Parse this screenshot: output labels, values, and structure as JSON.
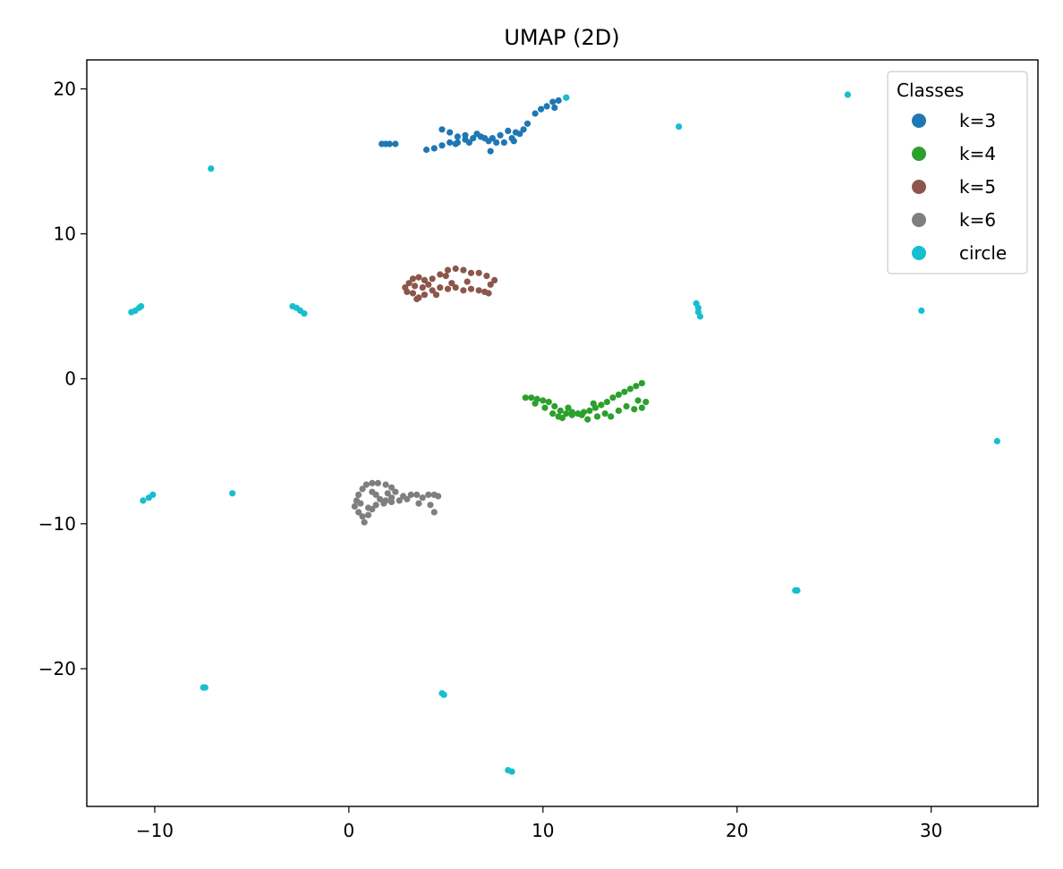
{
  "chart_data": {
    "type": "scatter",
    "title": "UMAP (2D)",
    "xlabel": "",
    "ylabel": "",
    "xlim": [
      -13.5,
      35.5
    ],
    "ylim": [
      -29.5,
      22
    ],
    "xticks": [
      -10,
      0,
      10,
      20,
      30
    ],
    "xtick_labels": [
      "−10",
      "0",
      "10",
      "20",
      "30"
    ],
    "yticks": [
      -20,
      -10,
      0,
      10,
      20
    ],
    "ytick_labels": [
      "−20",
      "−10",
      "0",
      "10",
      "20"
    ],
    "grid": false,
    "legend": {
      "title": "Classes",
      "placement": "top-right"
    },
    "series": [
      {
        "name": "k=3",
        "color": "#1f77b4",
        "points": [
          [
            1.7,
            16.2
          ],
          [
            1.9,
            16.2
          ],
          [
            2.1,
            16.2
          ],
          [
            2.4,
            16.2
          ],
          [
            4.0,
            15.8
          ],
          [
            4.4,
            15.9
          ],
          [
            4.8,
            16.1
          ],
          [
            5.2,
            16.3
          ],
          [
            5.6,
            16.3
          ],
          [
            6.0,
            16.5
          ],
          [
            6.4,
            16.6
          ],
          [
            6.8,
            16.7
          ],
          [
            7.2,
            16.4
          ],
          [
            7.6,
            16.3
          ],
          [
            8.0,
            16.3
          ],
          [
            8.4,
            16.6
          ],
          [
            8.8,
            16.9
          ],
          [
            4.8,
            17.2
          ],
          [
            5.2,
            17.0
          ],
          [
            5.6,
            16.7
          ],
          [
            6.0,
            16.8
          ],
          [
            6.6,
            16.9
          ],
          [
            7.0,
            16.6
          ],
          [
            7.4,
            16.6
          ],
          [
            7.8,
            16.8
          ],
          [
            8.2,
            17.1
          ],
          [
            8.6,
            17.0
          ],
          [
            9.0,
            17.2
          ],
          [
            9.2,
            17.6
          ],
          [
            9.6,
            18.3
          ],
          [
            9.9,
            18.6
          ],
          [
            10.2,
            18.8
          ],
          [
            10.5,
            19.1
          ],
          [
            10.8,
            19.2
          ],
          [
            11.2,
            19.4
          ],
          [
            10.6,
            18.7
          ],
          [
            7.3,
            15.7
          ],
          [
            5.5,
            16.2
          ],
          [
            6.2,
            16.3
          ],
          [
            8.5,
            16.4
          ]
        ]
      },
      {
        "name": "k=4",
        "color": "#2ca02c",
        "points": [
          [
            9.1,
            -1.3
          ],
          [
            9.4,
            -1.3
          ],
          [
            9.7,
            -1.4
          ],
          [
            10.0,
            -1.5
          ],
          [
            10.3,
            -1.6
          ],
          [
            10.6,
            -1.9
          ],
          [
            10.9,
            -2.2
          ],
          [
            11.2,
            -2.4
          ],
          [
            11.5,
            -2.5
          ],
          [
            11.8,
            -2.4
          ],
          [
            12.1,
            -2.3
          ],
          [
            12.4,
            -2.2
          ],
          [
            12.7,
            -2.0
          ],
          [
            13.0,
            -1.8
          ],
          [
            13.3,
            -1.6
          ],
          [
            13.6,
            -1.3
          ],
          [
            13.9,
            -1.1
          ],
          [
            14.2,
            -0.9
          ],
          [
            14.5,
            -0.7
          ],
          [
            14.8,
            -0.5
          ],
          [
            15.1,
            -0.3
          ],
          [
            9.6,
            -1.7
          ],
          [
            10.1,
            -2.0
          ],
          [
            10.5,
            -2.4
          ],
          [
            11.0,
            -2.7
          ],
          [
            11.5,
            -2.3
          ],
          [
            12.0,
            -2.5
          ],
          [
            12.3,
            -2.8
          ],
          [
            12.8,
            -2.6
          ],
          [
            13.2,
            -2.4
          ],
          [
            13.5,
            -2.6
          ],
          [
            13.9,
            -2.2
          ],
          [
            14.3,
            -1.9
          ],
          [
            14.7,
            -2.1
          ],
          [
            15.1,
            -2.0
          ],
          [
            15.3,
            -1.6
          ],
          [
            14.9,
            -1.5
          ],
          [
            12.6,
            -1.7
          ],
          [
            11.3,
            -2.0
          ],
          [
            10.8,
            -2.6
          ]
        ]
      },
      {
        "name": "k=5",
        "color": "#8c564b",
        "points": [
          [
            2.9,
            6.3
          ],
          [
            3.1,
            6.6
          ],
          [
            3.3,
            6.9
          ],
          [
            3.6,
            7.0
          ],
          [
            3.9,
            6.8
          ],
          [
            4.3,
            6.9
          ],
          [
            4.7,
            7.2
          ],
          [
            5.1,
            7.5
          ],
          [
            5.5,
            7.6
          ],
          [
            5.9,
            7.5
          ],
          [
            6.3,
            7.3
          ],
          [
            6.7,
            7.3
          ],
          [
            7.1,
            7.1
          ],
          [
            7.5,
            6.8
          ],
          [
            7.3,
            6.5
          ],
          [
            3.0,
            6.0
          ],
          [
            3.3,
            5.9
          ],
          [
            3.6,
            5.6
          ],
          [
            3.9,
            5.8
          ],
          [
            4.3,
            6.1
          ],
          [
            4.7,
            6.3
          ],
          [
            5.1,
            6.2
          ],
          [
            5.5,
            6.3
          ],
          [
            5.9,
            6.1
          ],
          [
            6.3,
            6.2
          ],
          [
            6.7,
            6.1
          ],
          [
            7.0,
            6.0
          ],
          [
            7.2,
            5.9
          ],
          [
            3.4,
            6.4
          ],
          [
            3.8,
            6.3
          ],
          [
            4.5,
            5.8
          ],
          [
            5.3,
            6.6
          ],
          [
            6.1,
            6.7
          ],
          [
            4.1,
            6.5
          ],
          [
            3.5,
            5.5
          ],
          [
            5.0,
            7.1
          ]
        ]
      },
      {
        "name": "k=6",
        "color": "#7f7f7f",
        "points": [
          [
            0.3,
            -8.8
          ],
          [
            0.4,
            -8.4
          ],
          [
            0.5,
            -8.0
          ],
          [
            0.7,
            -7.6
          ],
          [
            0.9,
            -7.3
          ],
          [
            1.2,
            -7.2
          ],
          [
            1.5,
            -7.2
          ],
          [
            1.9,
            -7.3
          ],
          [
            2.2,
            -7.5
          ],
          [
            2.4,
            -7.8
          ],
          [
            2.2,
            -8.2
          ],
          [
            1.9,
            -8.4
          ],
          [
            1.6,
            -8.3
          ],
          [
            1.4,
            -8.0
          ],
          [
            1.2,
            -7.8
          ],
          [
            0.5,
            -9.2
          ],
          [
            0.7,
            -9.5
          ],
          [
            0.8,
            -9.9
          ],
          [
            1.0,
            -9.4
          ],
          [
            1.2,
            -9.0
          ],
          [
            1.4,
            -8.7
          ],
          [
            1.8,
            -8.6
          ],
          [
            2.2,
            -8.5
          ],
          [
            2.6,
            -8.4
          ],
          [
            3.0,
            -8.3
          ],
          [
            3.2,
            -8.0
          ],
          [
            3.5,
            -8.0
          ],
          [
            3.8,
            -8.2
          ],
          [
            4.1,
            -8.0
          ],
          [
            4.4,
            -8.0
          ],
          [
            4.6,
            -8.1
          ],
          [
            4.2,
            -8.7
          ],
          [
            4.4,
            -9.2
          ],
          [
            3.6,
            -8.6
          ],
          [
            2.8,
            -8.1
          ],
          [
            0.6,
            -8.6
          ],
          [
            1.0,
            -8.9
          ],
          [
            2.0,
            -7.9
          ]
        ]
      },
      {
        "name": "circle",
        "color": "#17becf",
        "points": [
          [
            11.2,
            19.4
          ],
          [
            17.0,
            17.4
          ],
          [
            25.7,
            19.6
          ],
          [
            -7.1,
            14.5
          ],
          [
            -11.2,
            4.6
          ],
          [
            -11.0,
            4.7
          ],
          [
            -10.8,
            4.9
          ],
          [
            -10.7,
            5.0
          ],
          [
            -2.9,
            5.0
          ],
          [
            -2.7,
            4.9
          ],
          [
            -2.5,
            4.7
          ],
          [
            -2.3,
            4.5
          ],
          [
            17.9,
            5.2
          ],
          [
            18.0,
            4.9
          ],
          [
            18.0,
            4.6
          ],
          [
            18.1,
            4.3
          ],
          [
            29.5,
            4.7
          ],
          [
            33.4,
            -4.3
          ],
          [
            -10.6,
            -8.4
          ],
          [
            -10.3,
            -8.2
          ],
          [
            -10.1,
            -8.0
          ],
          [
            -6.0,
            -7.9
          ],
          [
            23.0,
            -14.6
          ],
          [
            23.1,
            -14.6
          ],
          [
            -7.5,
            -21.3
          ],
          [
            -7.4,
            -21.3
          ],
          [
            4.8,
            -21.7
          ],
          [
            4.9,
            -21.8
          ],
          [
            8.2,
            -27.0
          ],
          [
            8.4,
            -27.1
          ]
        ]
      }
    ]
  }
}
